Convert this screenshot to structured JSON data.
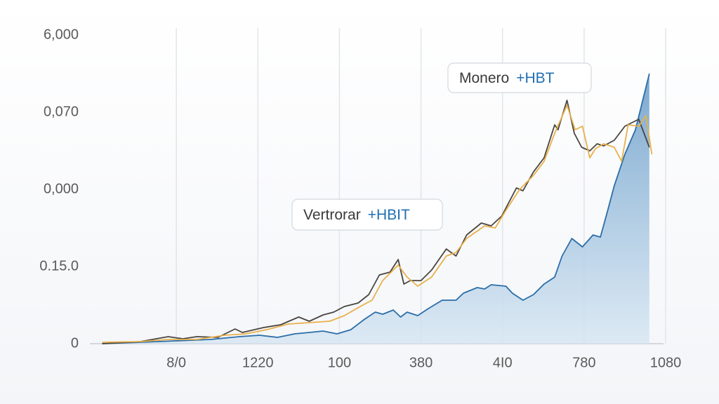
{
  "chart_data": {
    "type": "line",
    "grid": true,
    "xlim": [
      0,
      7
    ],
    "ylim": [
      0,
      6000
    ],
    "xticks": [
      {
        "value": 1,
        "label": "8/0"
      },
      {
        "value": 2,
        "label": "1220"
      },
      {
        "value": 3,
        "label": "100"
      },
      {
        "value": 4,
        "label": "380"
      },
      {
        "value": 5,
        "label": "4I0"
      },
      {
        "value": 6,
        "label": "780"
      },
      {
        "value": 7,
        "label": "1080"
      }
    ],
    "yticks": [
      0,
      {
        "value": 1500,
        "label": "0.15.0"
      },
      {
        "value": 3000,
        "label": "0,000"
      },
      {
        "value": 4500,
        "label": "0,070"
      },
      {
        "value": 6000,
        "label": "6,000"
      }
    ],
    "annotations": [
      {
        "text": "Monero",
        "tag": "+HBT"
      },
      {
        "text": "Vertrorar",
        "tag": "+HBIT"
      }
    ],
    "series": [
      {
        "color": "#2b6ea8",
        "fill": true,
        "x": [
          0.09,
          0.56,
          0.99,
          1.42,
          1.77,
          2.02,
          2.24,
          2.45,
          2.63,
          2.8,
          2.97,
          3.14,
          3.31,
          3.44,
          3.53,
          3.66,
          3.75,
          3.83,
          3.96,
          4.09,
          4.26,
          4.43,
          4.52,
          4.69,
          4.78,
          4.86,
          5.04,
          5.12,
          5.25,
          5.38,
          5.51,
          5.64,
          5.73,
          5.85,
          5.98,
          6.11,
          6.2,
          6.29,
          6.37,
          6.5,
          6.63,
          6.8
        ],
        "values": [
          0,
          27,
          55,
          82,
          136,
          164,
          123,
          191,
          218,
          245,
          191,
          273,
          477,
          614,
          573,
          655,
          518,
          614,
          545,
          682,
          845,
          845,
          982,
          1091,
          1064,
          1145,
          1118,
          982,
          845,
          955,
          1159,
          1295,
          1705,
          2045,
          1882,
          2114,
          2073,
          2591,
          3068,
          3682,
          4159,
          5250
        ]
      },
      {
        "color": "#4a4540",
        "fill": false,
        "x": [
          0.09,
          0.56,
          0.9,
          1.08,
          1.25,
          1.51,
          1.72,
          1.81,
          2.07,
          2.28,
          2.5,
          2.63,
          2.8,
          2.93,
          3.06,
          3.23,
          3.36,
          3.49,
          3.62,
          3.72,
          3.79,
          3.87,
          4.0,
          4.13,
          4.31,
          4.43,
          4.56,
          4.74,
          4.86,
          4.99,
          5.17,
          5.25,
          5.38,
          5.51,
          5.64,
          5.68,
          5.79,
          5.88,
          5.97,
          6.07,
          6.16,
          6.24,
          6.37,
          6.5,
          6.67,
          6.8
        ],
        "values": [
          0,
          41,
          136,
          95,
          136,
          123,
          286,
          218,
          314,
          368,
          518,
          436,
          559,
          614,
          723,
          791,
          955,
          1336,
          1391,
          1636,
          1159,
          1227,
          1227,
          1432,
          1841,
          1705,
          2114,
          2345,
          2291,
          2482,
          3027,
          2973,
          3341,
          3614,
          4255,
          4159,
          4732,
          4091,
          3818,
          3750,
          3886,
          3845,
          3955,
          4227,
          4364,
          3818
        ]
      },
      {
        "color": "#e8b04a",
        "fill": false,
        "x": [
          0.09,
          0.56,
          0.9,
          1.25,
          1.59,
          1.85,
          2.11,
          2.37,
          2.63,
          2.88,
          3.06,
          3.27,
          3.4,
          3.53,
          3.72,
          3.83,
          3.96,
          4.13,
          4.31,
          4.43,
          4.56,
          4.78,
          4.91,
          5.04,
          5.21,
          5.38,
          5.51,
          5.64,
          5.79,
          5.89,
          5.98,
          6.07,
          6.14,
          6.24,
          6.37,
          6.46,
          6.54,
          6.67,
          6.76,
          6.83
        ],
        "values": [
          27,
          41,
          82,
          82,
          164,
          191,
          273,
          382,
          409,
          436,
          545,
          736,
          845,
          1227,
          1527,
          1295,
          1118,
          1295,
          1705,
          1773,
          2045,
          2291,
          2250,
          2591,
          3000,
          3273,
          3545,
          4091,
          4636,
          4159,
          4227,
          3614,
          3791,
          3886,
          3818,
          3545,
          4255,
          4227,
          4432,
          3682
        ]
      }
    ]
  }
}
